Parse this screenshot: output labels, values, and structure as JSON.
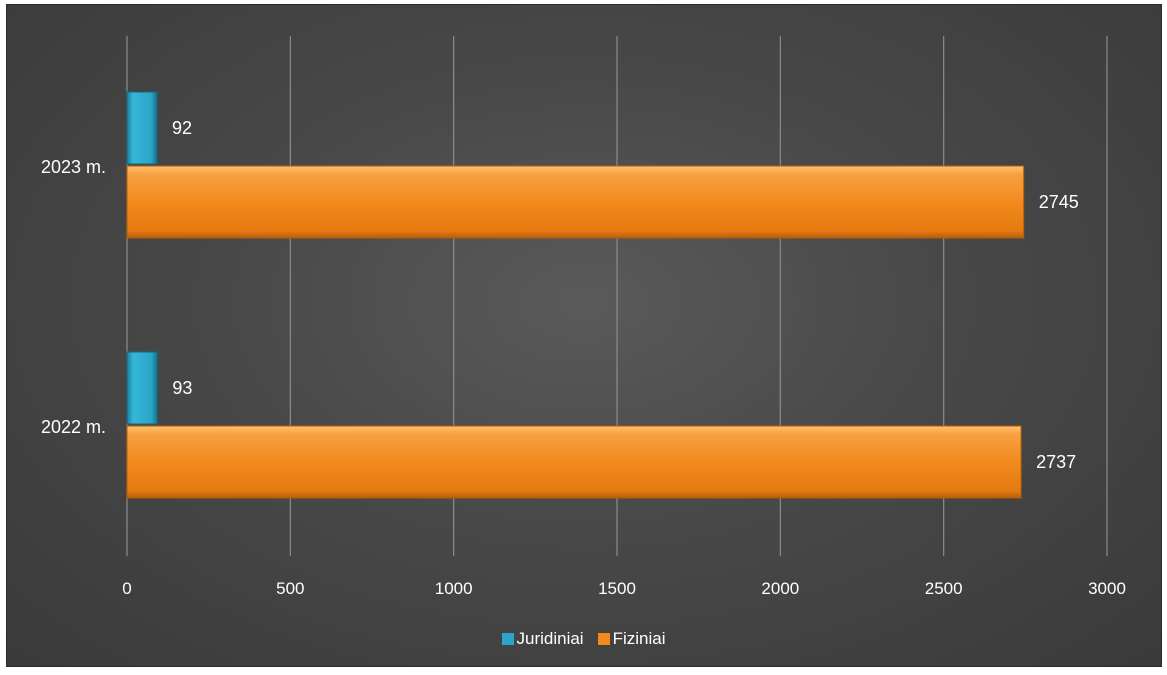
{
  "chart_data": {
    "type": "bar",
    "orientation": "horizontal",
    "categories": [
      "2022 m.",
      "2023 m."
    ],
    "series": [
      {
        "name": "Juridiniai",
        "values": [
          93,
          92
        ],
        "color": "#2aa6c8"
      },
      {
        "name": "Fiziniai",
        "values": [
          2737,
          2745
        ],
        "color": "#f28a1e"
      }
    ],
    "xlim": [
      0,
      3000
    ],
    "xticks": [
      0,
      500,
      1000,
      1500,
      2000,
      2500,
      3000
    ],
    "grid": true,
    "legend": "bottom",
    "data_labels": true,
    "background": "#4a4a4a"
  }
}
